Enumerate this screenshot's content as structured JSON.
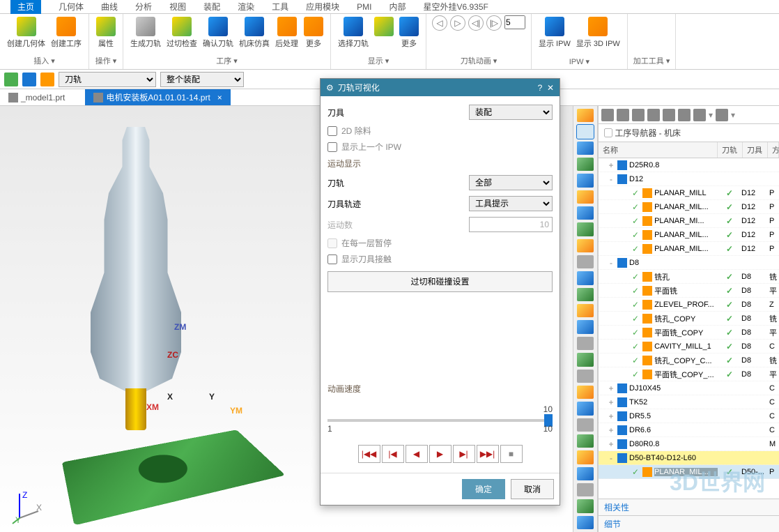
{
  "menu": [
    "主页",
    "几何体",
    "曲线",
    "分析",
    "视图",
    "装配",
    "渲染",
    "工具",
    "应用模块",
    "PMI",
    "内部",
    "星空外挂V6.935F"
  ],
  "activeMenu": "主页",
  "ribbon": {
    "groups": [
      {
        "label": "插入",
        "items": [
          {
            "l": "创建几何体"
          },
          {
            "l": "创建工序"
          }
        ]
      },
      {
        "label": "操作",
        "items": [
          {
            "l": "属性"
          }
        ]
      },
      {
        "label": "工序",
        "items": [
          {
            "l": "生成刀轨"
          },
          {
            "l": "过切检查"
          },
          {
            "l": "确认刀轨"
          },
          {
            "l": "机床仿真"
          },
          {
            "l": "后处理"
          },
          {
            "l": "更多"
          }
        ]
      },
      {
        "label": "显示",
        "items": [
          {
            "l": "选择刀轨"
          },
          {
            "l": ""
          },
          {
            "l": "更多"
          }
        ]
      },
      {
        "label": "刀轨动画",
        "items": []
      },
      {
        "label": "IPW",
        "items": [
          {
            "l": "显示 IPW"
          },
          {
            "l": "显示 3D IPW"
          }
        ]
      },
      {
        "label": "加工工具",
        "items": []
      }
    ],
    "frameValue": "5"
  },
  "toolbar2": {
    "dropdown1": "刀轨",
    "dropdown2": "整个装配"
  },
  "tabs": [
    {
      "label": "_model1.prt",
      "active": false,
      "close": true
    },
    {
      "label": "电机安装板A01.01.01-14.prt",
      "active": true,
      "close": true
    }
  ],
  "dialog": {
    "title": "刀轨可视化",
    "tool_label": "刀具",
    "tool_value": "装配",
    "cb1": "2D 除料",
    "cb2": "显示上一个 IPW",
    "motion_section": "运动显示",
    "path_label": "刀轨",
    "path_value": "全部",
    "trail_label": "刀具轨迹",
    "trail_value": "工具提示",
    "motion_count_label": "运动数",
    "motion_count_value": "10",
    "cb3": "在每一层暂停",
    "cb4": "显示刀具接触",
    "collision_btn": "过切和碰撞设置",
    "speed_label": "动画速度",
    "slider_min": "1",
    "slider_max": "10",
    "slider_val": "10",
    "ok": "确定",
    "cancel": "取消"
  },
  "rightPanel": {
    "title": "工序导航器 - 机床",
    "headers": [
      "名称",
      "刀轨",
      "刀具",
      "方"
    ],
    "rows": [
      {
        "d": 1,
        "t": "+",
        "i": "tool",
        "l": "D25R0.8",
        "c": "",
        "c2": ""
      },
      {
        "d": 1,
        "t": "-",
        "i": "tool",
        "l": "D12",
        "c": "",
        "c2": ""
      },
      {
        "d": 3,
        "t": "",
        "i": "op",
        "l": "PLANAR_MILL",
        "c": "✓",
        "c2": "D12",
        "c3": "P"
      },
      {
        "d": 3,
        "t": "",
        "i": "op",
        "l": "PLANAR_MIL...",
        "c": "✓",
        "c2": "D12",
        "c3": "P"
      },
      {
        "d": 3,
        "t": "",
        "i": "op",
        "l": "PLANAR_MI...",
        "c": "✓",
        "c2": "D12",
        "c3": "P"
      },
      {
        "d": 3,
        "t": "",
        "i": "op",
        "l": "PLANAR_MIL...",
        "c": "✓",
        "c2": "D12",
        "c3": "P"
      },
      {
        "d": 3,
        "t": "",
        "i": "op",
        "l": "PLANAR_MIL...",
        "c": "✓",
        "c2": "D12",
        "c3": "P"
      },
      {
        "d": 1,
        "t": "-",
        "i": "tool",
        "l": "D8",
        "c": "",
        "c2": ""
      },
      {
        "d": 3,
        "t": "",
        "i": "op",
        "l": "铣孔",
        "c": "✓",
        "c2": "D8",
        "c3": "铣"
      },
      {
        "d": 3,
        "t": "",
        "i": "op",
        "l": "平面铣",
        "c": "✓",
        "c2": "D8",
        "c3": "平"
      },
      {
        "d": 3,
        "t": "",
        "i": "op",
        "l": "ZLEVEL_PROF...",
        "c": "✓",
        "c2": "D8",
        "c3": "Z"
      },
      {
        "d": 3,
        "t": "",
        "i": "op",
        "l": "铣孔_COPY",
        "c": "✓",
        "c2": "D8",
        "c3": "铣"
      },
      {
        "d": 3,
        "t": "",
        "i": "op",
        "l": "平面铣_COPY",
        "c": "✓",
        "c2": "D8",
        "c3": "平"
      },
      {
        "d": 3,
        "t": "",
        "i": "op",
        "l": "CAVITY_MILL_1",
        "c": "✓",
        "c2": "D8",
        "c3": "C"
      },
      {
        "d": 3,
        "t": "",
        "i": "op",
        "l": "铣孔_COPY_C...",
        "c": "✓",
        "c2": "D8",
        "c3": "铣"
      },
      {
        "d": 3,
        "t": "",
        "i": "op",
        "l": "平面铣_COPY_...",
        "c": "✓",
        "c2": "D8",
        "c3": "平"
      },
      {
        "d": 1,
        "t": "+",
        "i": "tool",
        "l": "DJ10X45",
        "c": "",
        "c2": "",
        "c3": "C"
      },
      {
        "d": 1,
        "t": "+",
        "i": "tool",
        "l": "TK52",
        "c": "",
        "c2": "",
        "c3": "C"
      },
      {
        "d": 1,
        "t": "+",
        "i": "tool",
        "l": "DR5.5",
        "c": "",
        "c2": "",
        "c3": "C"
      },
      {
        "d": 1,
        "t": "+",
        "i": "tool",
        "l": "DR6.6",
        "c": "",
        "c2": "",
        "c3": "C"
      },
      {
        "d": 1,
        "t": "+",
        "i": "tool",
        "l": "D80R0.8",
        "c": "",
        "c2": "",
        "c3": "M"
      },
      {
        "d": 1,
        "t": "-",
        "i": "tool",
        "l": "D50-BT40-D12-L60",
        "c": "",
        "c2": "",
        "hl": true
      },
      {
        "d": 3,
        "t": "",
        "i": "op",
        "l": "PLANAR_MIL...",
        "c": "✓",
        "c2": "D50-...",
        "c3": "P",
        "sel": true
      }
    ],
    "footer1": "相关性",
    "footer2": "细节"
  },
  "watermark": "3D世界网",
  "sceneLabels": {
    "zm": "ZM",
    "zc": "ZC",
    "xm": "XM",
    "ym": "YM",
    "x": "X",
    "y": "Y"
  }
}
